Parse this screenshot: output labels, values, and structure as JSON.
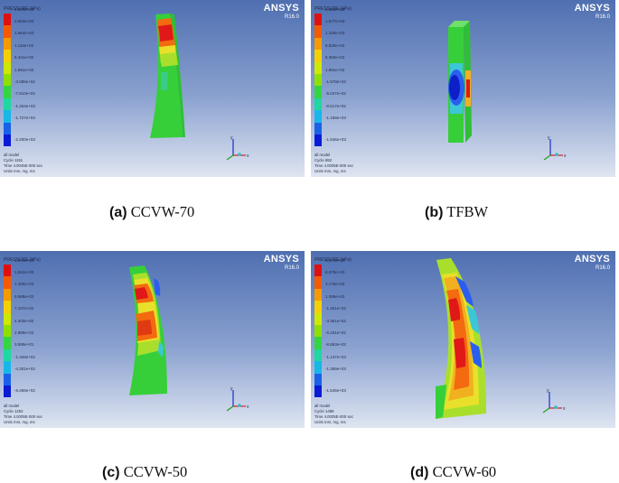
{
  "panels": [
    {
      "id": "a",
      "caption_label": "(a)",
      "caption_name": "CCVW-70",
      "brand": "ANSYS",
      "version": "R16.0",
      "legend_title": "PRESSURE (kPa)",
      "ticks": [
        "2.584e+03",
        "2.063e+03",
        "1.664e+03",
        "1.116e+03",
        "6.441e+02",
        "1.691e+02",
        "-3.085e+02",
        "-7.810e+02",
        "-1.254e+03",
        "-1.727e+03",
        "-2.200e+03"
      ],
      "info": [
        "all model",
        "Cycle 1191",
        "Time 4.0045E-000 sec",
        "Units mm, mg, ms"
      ],
      "axis_y": "y",
      "axis_x": "x"
    },
    {
      "id": "b",
      "caption_label": "(b)",
      "caption_name": "TFBW",
      "brand": "ANSYS",
      "version": "R16.0",
      "legend_title": "PRESSURE (kPa)",
      "ticks": [
        "2.502e+03",
        "1.577e+03",
        "1.230e+03",
        "8.830e+02",
        "5.360e+02",
        "1.891e+02",
        "-1.578e+02",
        "-5.047e+02",
        "-8.517e+02",
        "-1.199e+03",
        "-1.546e+03"
      ],
      "info": [
        "all model",
        "Cycle 882",
        "Time 4.0005E-000 sec",
        "Units mm, mg, ms"
      ],
      "axis_y": "y",
      "axis_x": "x"
    },
    {
      "id": "c",
      "caption_label": "(c)",
      "caption_name": "CCVW-50",
      "brand": "ANSYS",
      "version": "R16.0",
      "legend_title": "PRESSURE (kPa)",
      "ticks": [
        "1.878e+03",
        "1.552e+03",
        "1.365e+03",
        "9.988e+02",
        "7.107e+02",
        "4.303e+02",
        "2.986e+02",
        "3.595e+01",
        "-1.326e+02",
        "-4.301e+02",
        "-6.466e+02"
      ],
      "info": [
        "all model",
        "Cycle 1252",
        "Time 4.0005E-000 sec",
        "Units mm, mg, ms"
      ],
      "axis_y": "y",
      "axis_x": "x"
    },
    {
      "id": "d",
      "caption_label": "(d)",
      "caption_name": "CCVW-60",
      "brand": "ANSYS",
      "version": "R16.0",
      "legend_title": "PRESSURE (kPa)",
      "ticks": [
        "9.170e+03",
        "8.075e+03",
        "3.176e+03",
        "1.096e+03",
        "-1.451e+02",
        "-3.351e+02",
        "-6.431e+02",
        "-8.863e+02",
        "-1.147e+03",
        "-1.359e+03",
        "-1.545e+03"
      ],
      "info": [
        "all model",
        "Cycle 1488",
        "Time 4.0005E-000 sec",
        "Units mm, mg, ms"
      ],
      "axis_y": "y",
      "axis_x": "x"
    }
  ],
  "legend_colors": [
    "#e01010",
    "#f55a00",
    "#f59a00",
    "#f5d000",
    "#cfe800",
    "#8ee000",
    "#33d640",
    "#1fd7a0",
    "#19b6e8",
    "#1a61e8",
    "#0a1bd6"
  ],
  "model_colors": {
    "red": "#e01818",
    "orange": "#f36a10",
    "amber": "#f1b020",
    "yellow": "#e8e02a",
    "lime": "#a9df2c",
    "green": "#36cf3a",
    "cyan": "#3cc7d6",
    "blue": "#2a5ef0",
    "navy": "#0d1fc7"
  }
}
